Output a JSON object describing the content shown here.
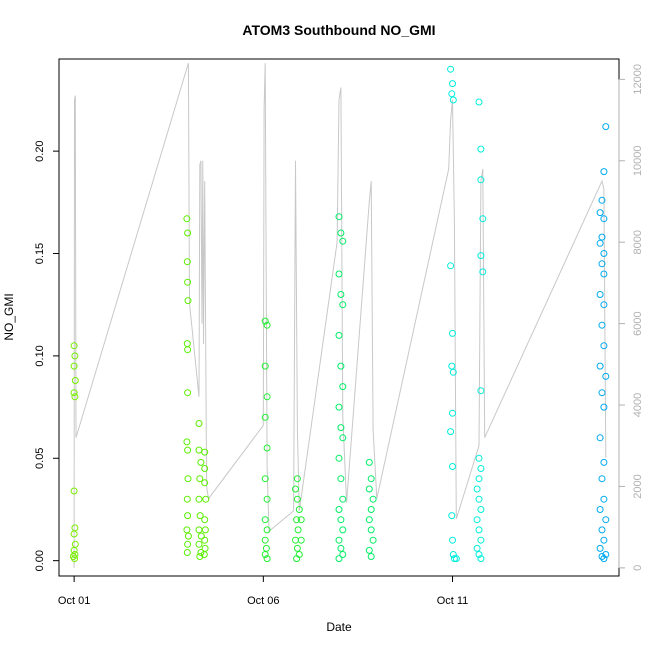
{
  "chart_data": {
    "type": "scatter",
    "title": "ATOM3 Southbound NO_GMI",
    "xlabel": "Date",
    "ylabel": "NO_GMI",
    "x_ticks": [
      "Oct 01",
      "Oct 06",
      "Oct 11"
    ],
    "x_tick_values": [
      1,
      6,
      11
    ],
    "xlim": [
      0.6,
      15.4
    ],
    "y_ticks": [
      "0.00",
      "0.05",
      "0.10",
      "0.15",
      "0.20"
    ],
    "y_tick_values": [
      0,
      0.05,
      0.1,
      0.15,
      0.2
    ],
    "ylim": [
      -0.0075,
      0.245
    ],
    "y2_ticks": [
      "0",
      "2000",
      "4000",
      "6000",
      "8000",
      "10000",
      "12000"
    ],
    "y2_tick_values": [
      0,
      2000,
      4000,
      6000,
      8000,
      10000,
      12000
    ],
    "y2lim": [
      -200,
      12500
    ],
    "grid": false,
    "series": [
      {
        "color": "#77ee00",
        "points": [
          [
            1.0,
            0.105
          ],
          [
            1.02,
            0.1
          ],
          [
            1.0,
            0.095
          ],
          [
            1.03,
            0.088
          ],
          [
            1.0,
            0.082
          ],
          [
            1.02,
            0.08
          ],
          [
            1.0,
            0.034
          ],
          [
            1.02,
            0.016
          ],
          [
            1.0,
            0.013
          ],
          [
            1.03,
            0.008
          ],
          [
            1.0,
            0.005
          ],
          [
            1.02,
            0.003
          ],
          [
            0.98,
            0.002
          ],
          [
            1.01,
            0.001
          ]
        ]
      },
      {
        "color": "#5cee00",
        "points": [
          [
            3.98,
            0.167
          ],
          [
            4.0,
            0.16
          ],
          [
            3.99,
            0.146
          ],
          [
            4.0,
            0.136
          ],
          [
            4.01,
            0.127
          ],
          [
            3.99,
            0.106
          ],
          [
            4.0,
            0.103
          ],
          [
            4.0,
            0.082
          ],
          [
            3.98,
            0.058
          ],
          [
            4.0,
            0.054
          ],
          [
            4.01,
            0.04
          ],
          [
            3.99,
            0.03
          ],
          [
            4.0,
            0.022
          ],
          [
            3.98,
            0.015
          ],
          [
            4.02,
            0.012
          ],
          [
            4.0,
            0.008
          ],
          [
            3.99,
            0.004
          ],
          [
            4.3,
            0.067
          ],
          [
            4.3,
            0.054
          ],
          [
            4.35,
            0.048
          ],
          [
            4.32,
            0.04
          ],
          [
            4.3,
            0.03
          ],
          [
            4.33,
            0.022
          ],
          [
            4.3,
            0.015
          ],
          [
            4.36,
            0.012
          ],
          [
            4.3,
            0.008
          ],
          [
            4.35,
            0.004
          ],
          [
            4.32,
            0.002
          ],
          [
            4.45,
            0.053
          ],
          [
            4.45,
            0.045
          ],
          [
            4.45,
            0.038
          ],
          [
            4.48,
            0.03
          ],
          [
            4.45,
            0.02
          ],
          [
            4.47,
            0.015
          ],
          [
            4.45,
            0.01
          ],
          [
            4.46,
            0.006
          ],
          [
            4.44,
            0.003
          ]
        ]
      },
      {
        "color": "#22ee33",
        "points": [
          [
            6.05,
            0.117
          ],
          [
            6.1,
            0.115
          ],
          [
            6.05,
            0.095
          ],
          [
            6.1,
            0.08
          ],
          [
            6.05,
            0.07
          ],
          [
            6.1,
            0.055
          ],
          [
            6.05,
            0.04
          ],
          [
            6.1,
            0.03
          ],
          [
            6.05,
            0.02
          ],
          [
            6.1,
            0.015
          ],
          [
            6.05,
            0.01
          ],
          [
            6.08,
            0.006
          ],
          [
            6.05,
            0.003
          ],
          [
            6.1,
            0.001
          ],
          [
            6.9,
            0.04
          ],
          [
            6.85,
            0.035
          ],
          [
            6.9,
            0.03
          ],
          [
            6.95,
            0.025
          ],
          [
            6.88,
            0.02
          ],
          [
            6.92,
            0.015
          ],
          [
            6.85,
            0.01
          ],
          [
            6.9,
            0.006
          ],
          [
            6.95,
            0.003
          ],
          [
            6.88,
            0.001
          ],
          [
            7.0,
            0.02
          ],
          [
            7.0,
            0.01
          ]
        ]
      },
      {
        "color": "#00ee66",
        "points": [
          [
            8.0,
            0.168
          ],
          [
            8.05,
            0.16
          ],
          [
            8.1,
            0.156
          ],
          [
            8.0,
            0.14
          ],
          [
            8.05,
            0.13
          ],
          [
            8.1,
            0.125
          ],
          [
            8.0,
            0.11
          ],
          [
            8.05,
            0.095
          ],
          [
            8.1,
            0.085
          ],
          [
            8.0,
            0.075
          ],
          [
            8.05,
            0.065
          ],
          [
            8.1,
            0.06
          ],
          [
            8.0,
            0.05
          ],
          [
            8.05,
            0.04
          ],
          [
            8.1,
            0.03
          ],
          [
            8.0,
            0.025
          ],
          [
            8.05,
            0.02
          ],
          [
            8.1,
            0.015
          ],
          [
            8.0,
            0.01
          ],
          [
            8.05,
            0.006
          ],
          [
            8.1,
            0.003
          ],
          [
            8.0,
            0.001
          ],
          [
            8.8,
            0.048
          ],
          [
            8.85,
            0.04
          ],
          [
            8.8,
            0.035
          ],
          [
            8.9,
            0.03
          ],
          [
            8.85,
            0.025
          ],
          [
            8.8,
            0.02
          ],
          [
            8.85,
            0.015
          ],
          [
            8.9,
            0.01
          ],
          [
            8.8,
            0.005
          ],
          [
            8.85,
            0.002
          ]
        ]
      },
      {
        "color": "#00eedd",
        "points": [
          [
            10.95,
            0.24
          ],
          [
            11.0,
            0.233
          ],
          [
            10.98,
            0.228
          ],
          [
            11.02,
            0.225
          ],
          [
            10.95,
            0.144
          ],
          [
            11.0,
            0.111
          ],
          [
            10.98,
            0.095
          ],
          [
            11.02,
            0.092
          ],
          [
            11.0,
            0.072
          ],
          [
            10.95,
            0.063
          ],
          [
            11.0,
            0.046
          ],
          [
            10.98,
            0.022
          ],
          [
            11.0,
            0.01
          ],
          [
            11.02,
            0.003
          ],
          [
            11.05,
            0.001
          ],
          [
            11.1,
            0.001
          ],
          [
            11.7,
            0.224
          ],
          [
            11.75,
            0.201
          ],
          [
            11.75,
            0.186
          ],
          [
            11.8,
            0.167
          ],
          [
            11.75,
            0.149
          ],
          [
            11.8,
            0.141
          ],
          [
            11.75,
            0.083
          ],
          [
            11.7,
            0.05
          ],
          [
            11.75,
            0.045
          ],
          [
            11.7,
            0.04
          ],
          [
            11.65,
            0.035
          ],
          [
            11.7,
            0.03
          ],
          [
            11.75,
            0.025
          ],
          [
            11.65,
            0.02
          ],
          [
            11.7,
            0.015
          ],
          [
            11.75,
            0.01
          ],
          [
            11.65,
            0.006
          ],
          [
            11.7,
            0.003
          ],
          [
            11.75,
            0.001
          ]
        ]
      },
      {
        "color": "#00aaee",
        "points": [
          [
            15.05,
            0.212
          ],
          [
            15.0,
            0.19
          ],
          [
            14.95,
            0.176
          ],
          [
            14.9,
            0.17
          ],
          [
            15.0,
            0.167
          ],
          [
            14.95,
            0.158
          ],
          [
            14.9,
            0.155
          ],
          [
            15.0,
            0.15
          ],
          [
            14.95,
            0.145
          ],
          [
            15.0,
            0.14
          ],
          [
            14.9,
            0.13
          ],
          [
            15.0,
            0.125
          ],
          [
            14.95,
            0.115
          ],
          [
            15.0,
            0.105
          ],
          [
            14.9,
            0.095
          ],
          [
            15.05,
            0.09
          ],
          [
            14.95,
            0.082
          ],
          [
            15.0,
            0.075
          ],
          [
            14.9,
            0.06
          ],
          [
            15.0,
            0.048
          ],
          [
            14.95,
            0.04
          ],
          [
            15.0,
            0.03
          ],
          [
            14.9,
            0.025
          ],
          [
            15.05,
            0.02
          ],
          [
            14.95,
            0.015
          ],
          [
            15.0,
            0.01
          ],
          [
            14.9,
            0.006
          ],
          [
            15.05,
            0.003
          ],
          [
            15.0,
            0.001
          ],
          [
            14.95,
            0.002
          ]
        ]
      }
    ],
    "altitude_series": {
      "axis": "right",
      "color": "#c8c8c8",
      "points": [
        [
          1.0,
          0
        ],
        [
          1.01,
          11500
        ],
        [
          1.03,
          11600
        ],
        [
          1.05,
          3200
        ],
        [
          4.02,
          12400
        ],
        [
          4.05,
          6500
        ],
        [
          4.3,
          4200
        ],
        [
          4.32,
          9900
        ],
        [
          4.35,
          10000
        ],
        [
          4.38,
          6000
        ],
        [
          4.4,
          10000
        ],
        [
          4.42,
          5500
        ],
        [
          4.45,
          9500
        ],
        [
          4.5,
          2000
        ],
        [
          4.55,
          1700
        ],
        [
          6.0,
          3500
        ],
        [
          6.02,
          11300
        ],
        [
          6.05,
          12400
        ],
        [
          6.1,
          2500
        ],
        [
          6.15,
          900
        ],
        [
          6.8,
          1400
        ],
        [
          6.85,
          10000
        ],
        [
          6.9,
          3400
        ],
        [
          6.95,
          1400
        ],
        [
          7.95,
          8000
        ],
        [
          8.0,
          11500
        ],
        [
          8.05,
          11800
        ],
        [
          8.1,
          3700
        ],
        [
          8.2,
          1600
        ],
        [
          8.8,
          9000
        ],
        [
          8.85,
          9500
        ],
        [
          8.9,
          3400
        ],
        [
          9.0,
          1700
        ],
        [
          10.9,
          9800
        ],
        [
          10.95,
          11000
        ],
        [
          11.0,
          11500
        ],
        [
          11.05,
          8500
        ],
        [
          11.1,
          1200
        ],
        [
          11.7,
          3000
        ],
        [
          11.75,
          9500
        ],
        [
          11.8,
          9800
        ],
        [
          11.85,
          3200
        ],
        [
          14.9,
          9400
        ],
        [
          14.95,
          9500
        ],
        [
          15.0,
          9300
        ],
        [
          15.05,
          2700
        ]
      ]
    }
  }
}
